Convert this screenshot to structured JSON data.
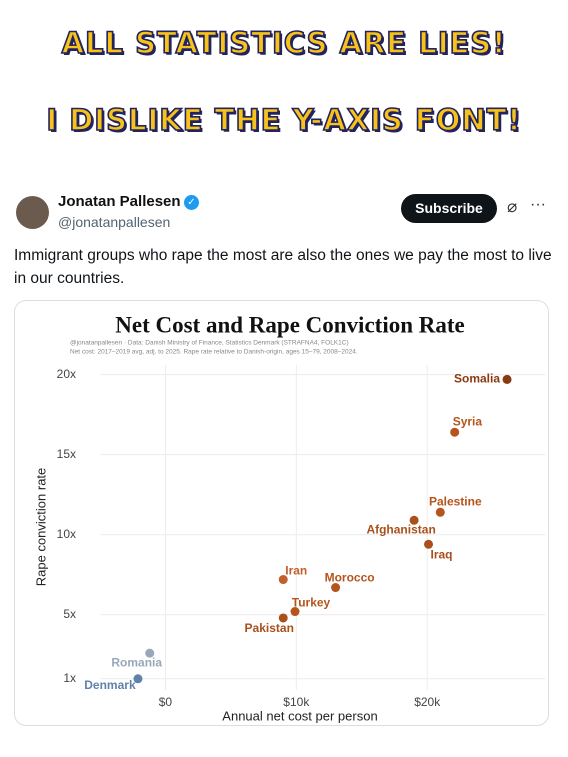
{
  "meme": {
    "line1": "ALL STATISTICS ARE LIES!",
    "line2": "I DISLIKE THE Y-AXIS FONT!"
  },
  "tweet": {
    "name": "Jonatan Pallesen",
    "handle": "@jonatanpallesen",
    "button": "Subscribe",
    "text": "Immigrant groups who rape the most are also the ones we pay the most to live in our countries."
  },
  "chart_data": {
    "type": "scatter",
    "title": "Net Cost and Rape Conviction Rate",
    "subtitle": [
      "@jonatanpallesen · Data: Danish Ministry of Finance, Statistics Denmark (STRAFNA4, FOLK1C)",
      "Net cost: 2017–2019 avg, adj. to 2025. Rape rate relative to Danish-origin, ages 15–79, 2008–2024."
    ],
    "x_label": "Annual net cost per person",
    "y_label": "Rape conviction rate",
    "labels": [
      "Somalia",
      "Syria",
      "Palestine",
      "Afghanistan",
      "Iraq",
      "Iran",
      "Morocco",
      "Turkey",
      "Pakistan",
      "Romania",
      "Denmark"
    ],
    "x": [
      26100,
      22100,
      21000,
      19000,
      20100,
      9000,
      13000,
      9900,
      9000,
      -1200,
      -2100
    ],
    "values": [
      19.7,
      16.4,
      11.4,
      10.9,
      9.4,
      7.2,
      6.7,
      5.2,
      4.8,
      2.6,
      1.0
    ],
    "colors": [
      "#8a3a12",
      "#b5541c",
      "#b5541c",
      "#a9501d",
      "#a9501d",
      "#c0602a",
      "#b5541c",
      "#b5541c",
      "#a9501d",
      "#98a8bb",
      "#5f82aa"
    ],
    "xlim": [
      -5000,
      29000
    ],
    "ylim": [
      0.3,
      20.6
    ],
    "xticks": [
      {
        "value": 0,
        "label": "$0"
      },
      {
        "value": 10000,
        "label": "$10k"
      },
      {
        "value": 20000,
        "label": "$20k"
      }
    ],
    "yticks": [
      {
        "value": 1,
        "label": "1x"
      },
      {
        "value": 5,
        "label": "5x"
      },
      {
        "value": 10,
        "label": "10x"
      },
      {
        "value": 15,
        "label": "15x"
      },
      {
        "value": 20,
        "label": "20x"
      }
    ],
    "grid": true
  }
}
